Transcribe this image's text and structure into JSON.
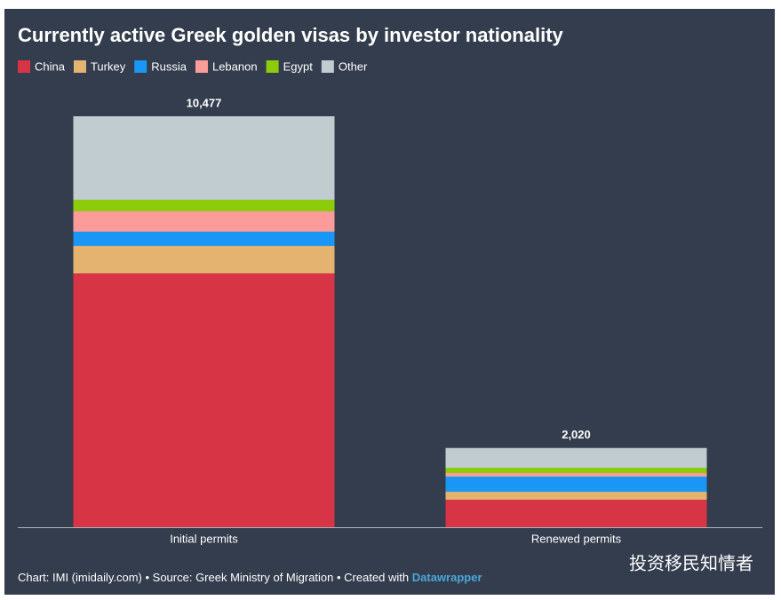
{
  "chart_data": {
    "type": "stacked_bar",
    "title": "Currently active Greek golden visas by investor nationality",
    "categories": [
      "Initial permits",
      "Renewed permits"
    ],
    "series": [
      {
        "name": "China",
        "color": "#d73446",
        "values": [
          6472,
          701
        ]
      },
      {
        "name": "Turkey",
        "color": "#e3b36f",
        "values": [
          701,
          204
        ]
      },
      {
        "name": "Russia",
        "color": "#1a96f5",
        "values": [
          362,
          385
        ]
      },
      {
        "name": "Lebanon",
        "color": "#fb9c9a",
        "values": [
          520,
          90
        ]
      },
      {
        "name": "Egypt",
        "color": "#8dcc0a",
        "values": [
          294,
          136
        ]
      },
      {
        "name": "Other",
        "color": "#c1ccd1",
        "values": [
          2128,
          504
        ]
      }
    ],
    "totals": [
      10477,
      2020
    ],
    "total_labels": [
      "10,477",
      "2,020"
    ],
    "ylim": [
      0,
      10477
    ],
    "legend": "top-left",
    "footer": "Chart: IMI (imidaily.com) • Source: Greek Ministry of Migration • Created with ",
    "footer_link": "Datawrapper",
    "watermark": "投资移民知情者"
  }
}
